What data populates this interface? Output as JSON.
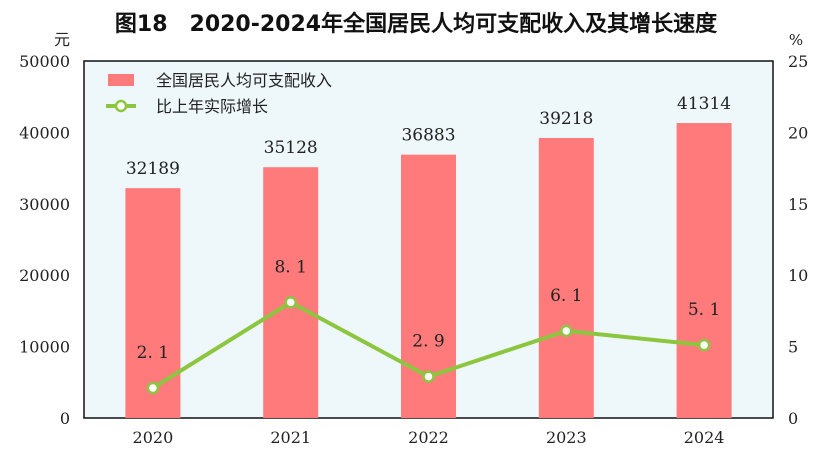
{
  "chart_data": {
    "type": "bar+line",
    "title": "图18　2020-2024年全国居民人均可支配收入及其增长速度",
    "categories": [
      "2020",
      "2021",
      "2022",
      "2023",
      "2024"
    ],
    "series": [
      {
        "name": "全国居民人均可支配收入",
        "type": "bar",
        "axis": "left",
        "values": [
          32189,
          35128,
          36883,
          39218,
          41314
        ],
        "color": "#ff7b7b"
      },
      {
        "name": "比上年实际增长",
        "type": "line",
        "axis": "right",
        "values": [
          2.1,
          8.1,
          2.9,
          6.1,
          5.1
        ],
        "color": "#8cc63f"
      }
    ],
    "y_left": {
      "unit": "元",
      "range": [
        0,
        50000
      ],
      "ticks": [
        "0",
        "10000",
        "20000",
        "30000",
        "40000",
        "50000"
      ]
    },
    "y_right": {
      "unit": "%",
      "range": [
        0,
        25
      ],
      "ticks": [
        "0",
        "5",
        "10",
        "15",
        "20",
        "25"
      ]
    },
    "legend": "top-left",
    "plot_background": "#eef7f9",
    "grid": false
  }
}
